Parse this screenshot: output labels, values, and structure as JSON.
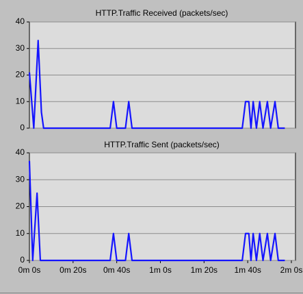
{
  "chart_data": [
    {
      "type": "line",
      "title": "HTTP.Traffic Received (packets/sec)",
      "color": "#1414ff",
      "x": [
        0,
        2,
        4,
        5.5,
        6.5,
        37,
        38.5,
        40,
        44,
        45.5,
        47,
        97.5,
        99,
        100.5,
        101.5,
        102.5,
        104,
        105.5,
        107,
        109,
        110.5,
        112.5,
        114,
        117
      ],
      "values": [
        21,
        0,
        33,
        6,
        0,
        0,
        10,
        0,
        0,
        10,
        0,
        0,
        10,
        10,
        0,
        10,
        0,
        10,
        0,
        10,
        0,
        10,
        0,
        0
      ],
      "xlim": [
        0,
        120
      ],
      "ylim": [
        0,
        40
      ],
      "yticks": [
        0,
        10,
        20,
        30,
        40
      ],
      "grid": true
    },
    {
      "type": "line",
      "title": "HTTP.Traffic Sent (packets/sec)",
      "color": "#1414ff",
      "x": [
        0,
        1.5,
        3.5,
        5,
        37,
        38.5,
        40,
        44,
        45.5,
        47,
        97.5,
        99,
        100.5,
        101.5,
        102.5,
        104,
        105.5,
        107,
        109,
        110.5,
        112.5,
        114,
        117
      ],
      "values": [
        37,
        0,
        25,
        0,
        0,
        10,
        0,
        0,
        10,
        0,
        0,
        10,
        10,
        0,
        10,
        0,
        10,
        0,
        10,
        0,
        10,
        0,
        0
      ],
      "xlim": [
        0,
        120
      ],
      "ylim": [
        0,
        40
      ],
      "yticks": [
        0,
        10,
        20,
        30,
        40
      ],
      "grid": true,
      "xticks": [
        {
          "value": 0,
          "label": "0m 0s"
        },
        {
          "value": 20,
          "label": "0m 20s"
        },
        {
          "value": 40,
          "label": "0m 40s"
        },
        {
          "value": 60,
          "label": "1m 0s"
        },
        {
          "value": 80,
          "label": "1m 20s"
        },
        {
          "value": 100,
          "label": "1m 40s"
        },
        {
          "value": 120,
          "label": "2m 0s"
        }
      ]
    }
  ]
}
